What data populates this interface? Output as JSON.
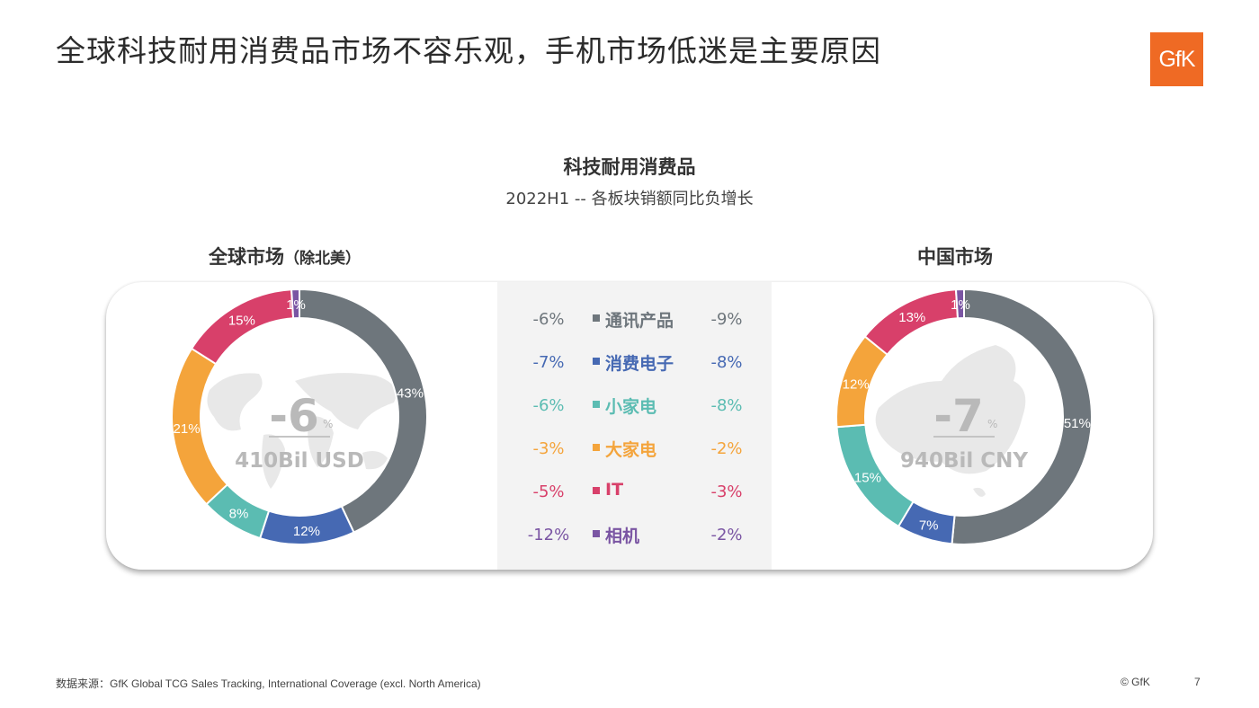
{
  "title": "全球科技耐用消费品市场不容乐观，手机市场低迷是主要原因",
  "logo": "GfK",
  "center_title": "科技耐用消费品",
  "center_subtitle": "2022H1 -- 各板块销额同比负增长",
  "global_title_main": "全球市场",
  "global_title_paren": "（除北美）",
  "china_title": "中国市场",
  "footer_source": "数据来源：GfK Global TCG  Sales Tracking, International Coverage (excl. North America)",
  "footer_copyright": "© GfK",
  "footer_page": "7",
  "colors": {
    "通讯产品": "#6e767c",
    "消费电子": "#4669b3",
    "小家电": "#5bbcb2",
    "大家电": "#f4a43b",
    "IT": "#d8406a",
    "相机": "#7a55a3"
  },
  "chart_data": [
    {
      "type": "pie",
      "name": "全球市场（除北美）",
      "center_value": "-6",
      "center_unit": "%",
      "center_total": "410Bil USD",
      "slices": [
        {
          "category": "通讯产品",
          "value": 43,
          "label": "43%"
        },
        {
          "category": "消费电子",
          "value": 12,
          "label": "12%"
        },
        {
          "category": "小家电",
          "value": 8,
          "label": "8%"
        },
        {
          "category": "大家电",
          "value": 21,
          "label": "21%"
        },
        {
          "category": "IT",
          "value": 15,
          "label": "15%"
        },
        {
          "category": "相机",
          "value": 1,
          "label": "1%"
        }
      ]
    },
    {
      "type": "pie",
      "name": "中国市场",
      "center_value": "-7",
      "center_unit": "%",
      "center_total": "940Bil CNY",
      "slices": [
        {
          "category": "通讯产品",
          "value": 51,
          "label": "51%"
        },
        {
          "category": "消费电子",
          "value": 7,
          "label": "7%"
        },
        {
          "category": "小家电",
          "value": 15,
          "label": "15%"
        },
        {
          "category": "大家电",
          "value": 12,
          "label": "12%"
        },
        {
          "category": "IT",
          "value": 13,
          "label": "13%"
        },
        {
          "category": "相机",
          "value": 1,
          "label": "1%"
        }
      ]
    },
    {
      "type": "table",
      "name": "2022H1 -- 各板块销额同比负增长",
      "rows": [
        {
          "category": "通讯产品",
          "global": "-6%",
          "china": "-9%"
        },
        {
          "category": "消费电子",
          "global": "-7%",
          "china": "-8%"
        },
        {
          "category": "小家电",
          "global": "-6%",
          "china": "-8%"
        },
        {
          "category": "大家电",
          "global": "-3%",
          "china": "-2%"
        },
        {
          "category": "IT",
          "global": "-5%",
          "china": "-3%"
        },
        {
          "category": "相机",
          "global": "-12%",
          "china": "-2%"
        }
      ]
    }
  ]
}
